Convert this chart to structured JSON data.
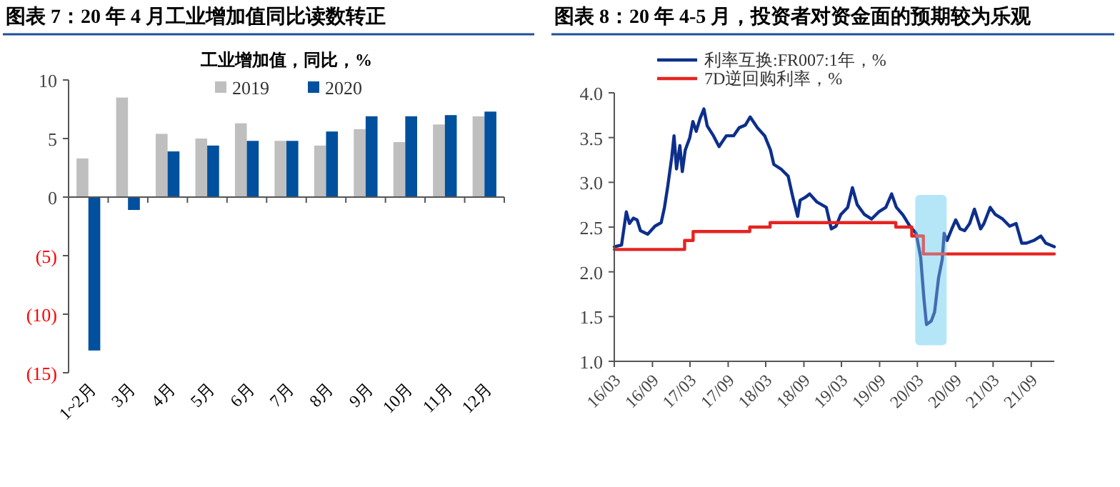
{
  "chart_data": [
    {
      "type": "bar",
      "title": "图表 7：20 年 4 月工业增加值同比读数转正",
      "subtitle": "工业增加值，同比，%",
      "categories": [
        "1~2月",
        "3月",
        "4月",
        "5月",
        "6月",
        "7月",
        "8月",
        "9月",
        "10月",
        "11月",
        "12月"
      ],
      "series": [
        {
          "name": "2019",
          "color": "#bfbfbf",
          "values": [
            3.3,
            8.5,
            5.4,
            5.0,
            6.3,
            4.8,
            4.4,
            5.8,
            4.7,
            6.2,
            6.9
          ]
        },
        {
          "name": "2020",
          "color": "#00509d",
          "values": [
            -13.1,
            -1.1,
            3.9,
            4.4,
            4.8,
            4.8,
            5.6,
            6.9,
            6.9,
            7.0,
            7.3
          ]
        }
      ],
      "ylim": [
        -15,
        10
      ],
      "yticks": [
        {
          "value": -15,
          "label": "(15)"
        },
        {
          "value": -10,
          "label": "(10)"
        },
        {
          "value": -5,
          "label": "(5)"
        },
        0,
        5,
        10
      ],
      "legend": "top"
    },
    {
      "type": "line",
      "title": "图表 8：20 年 4-5 月，投资者对资金面的预期较为乐观",
      "series": [
        {
          "name": "利率互换:FR007:1年，%",
          "color": "#0d2f8c",
          "x": [
            "2016-03-01",
            "2016-04-05",
            "2016-04-28",
            "2016-05-13",
            "2016-06-01",
            "2016-06-19",
            "2016-07-05",
            "2016-08-09",
            "2016-09-13",
            "2016-10-13",
            "2016-10-29",
            "2016-11-14",
            "2016-12-03",
            "2016-12-14",
            "2016-12-26",
            "2017-01-11",
            "2017-01-23",
            "2017-02-06",
            "2017-02-28",
            "2017-03-15",
            "2017-03-31",
            "2017-04-18",
            "2017-05-07",
            "2017-05-23",
            "2017-06-22",
            "2017-07-19",
            "2017-08-23",
            "2017-09-27",
            "2017-10-24",
            "2017-11-23",
            "2017-12-16",
            "2018-01-20",
            "2018-02-24",
            "2018-03-24",
            "2018-04-09",
            "2018-05-13",
            "2018-06-17",
            "2018-07-10",
            "2018-08-02",
            "2018-08-14",
            "2018-09-06",
            "2018-09-29",
            "2018-11-03",
            "2018-12-18",
            "2019-01-11",
            "2019-02-03",
            "2019-02-26",
            "2019-03-31",
            "2019-04-23",
            "2019-05-16",
            "2019-06-20",
            "2019-07-24",
            "2019-08-28",
            "2019-10-01",
            "2019-10-29",
            "2019-11-21",
            "2019-12-21",
            "2020-01-25",
            "2020-02-24",
            "2020-03-17",
            "2020-04-02",
            "2020-04-14",
            "2020-05-07",
            "2020-05-23",
            "2020-06-11",
            "2020-06-29",
            "2020-07-08",
            "2020-07-22",
            "2020-08-14",
            "2020-09-02",
            "2020-09-23",
            "2020-10-15",
            "2020-11-08",
            "2020-12-01",
            "2020-12-31",
            "2021-01-16",
            "2021-02-15",
            "2021-03-12",
            "2021-04-16",
            "2021-05-20",
            "2021-06-20",
            "2021-07-17",
            "2021-08-09",
            "2021-09-13",
            "2021-10-17",
            "2021-11-10",
            "2021-12-21"
          ],
          "values": [
            2.28,
            2.3,
            2.67,
            2.54,
            2.6,
            2.58,
            2.46,
            2.42,
            2.51,
            2.55,
            2.72,
            2.96,
            3.28,
            3.52,
            3.15,
            3.41,
            3.12,
            3.36,
            3.5,
            3.68,
            3.57,
            3.71,
            3.82,
            3.63,
            3.52,
            3.4,
            3.52,
            3.52,
            3.61,
            3.64,
            3.73,
            3.61,
            3.52,
            3.36,
            3.2,
            3.15,
            3.07,
            2.83,
            2.62,
            2.8,
            2.83,
            2.87,
            2.78,
            2.72,
            2.48,
            2.51,
            2.64,
            2.72,
            2.94,
            2.75,
            2.64,
            2.59,
            2.67,
            2.72,
            2.87,
            2.72,
            2.64,
            2.51,
            2.43,
            2.16,
            1.69,
            1.41,
            1.45,
            1.55,
            1.93,
            2.14,
            2.43,
            2.35,
            2.48,
            2.58,
            2.48,
            2.46,
            2.54,
            2.7,
            2.48,
            2.54,
            2.72,
            2.64,
            2.59,
            2.51,
            2.54,
            2.32,
            2.32,
            2.35,
            2.4,
            2.32,
            2.28
          ]
        },
        {
          "name": "7D逆回购利率，%",
          "color": "#e52421",
          "type": "step",
          "x": [
            "2016-03-01",
            "2017-02-03",
            "2017-03-16",
            "2017-12-14",
            "2018-03-22",
            "2019-11-18",
            "2020-02-03",
            "2020-03-30",
            "2021-12-21"
          ],
          "values": [
            2.25,
            2.35,
            2.45,
            2.5,
            2.55,
            2.5,
            2.4,
            2.2,
            2.2
          ]
        }
      ],
      "xlim": [
        "2016-03-01",
        "2021-12-21"
      ],
      "xticks": [
        {
          "value": "2016-03-01",
          "label": "16/03"
        },
        {
          "value": "2016-09-01",
          "label": "16/09"
        },
        {
          "value": "2017-03-01",
          "label": "17/03"
        },
        {
          "value": "2017-09-01",
          "label": "17/09"
        },
        {
          "value": "2018-03-01",
          "label": "18/03"
        },
        {
          "value": "2018-09-01",
          "label": "18/09"
        },
        {
          "value": "2019-03-01",
          "label": "19/03"
        },
        {
          "value": "2019-09-01",
          "label": "19/09"
        },
        {
          "value": "2020-03-01",
          "label": "20/03"
        },
        {
          "value": "2020-09-01",
          "label": "20/09"
        },
        {
          "value": "2021-03-01",
          "label": "21/03"
        },
        {
          "value": "2021-09-01",
          "label": "21/09"
        }
      ],
      "ylim": [
        1.0,
        4.0
      ],
      "yticks": [
        {
          "value": 1.0,
          "label": "1.0"
        },
        {
          "value": 1.5,
          "label": "1.5"
        },
        {
          "value": 2.0,
          "label": "2.0"
        },
        {
          "value": 2.5,
          "label": "2.5"
        },
        {
          "value": 3.0,
          "label": "3.0"
        },
        {
          "value": 3.5,
          "label": "3.5"
        },
        {
          "value": 4.0,
          "label": "4.0"
        }
      ],
      "bands": [
        {
          "axis": "x",
          "from": "2020-02-20",
          "to": "2020-07-20",
          "color": "#a9e2f6"
        }
      ],
      "legend": "top left",
      "line_style": "solid"
    }
  ]
}
